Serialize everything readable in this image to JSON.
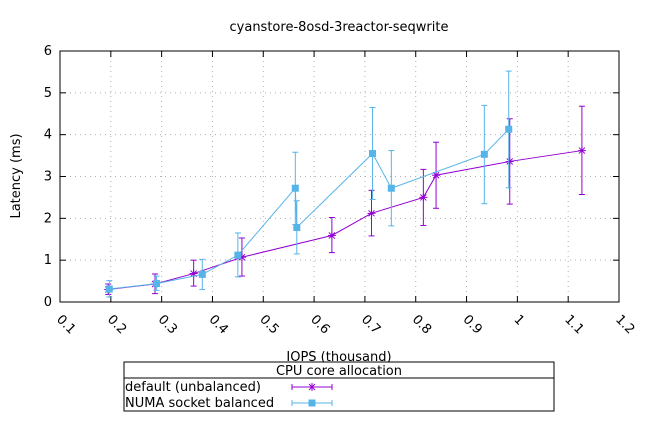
{
  "chart_data": {
    "type": "line",
    "title": "cyanstore-8osd-3reactor-seqwrite",
    "xlabel": "IOPS (thousand)",
    "ylabel": "Latency (ms)",
    "xlim": [
      0.1,
      1.2
    ],
    "ylim": [
      0,
      6
    ],
    "x_ticks": [
      "0.1",
      "0.2",
      "0.3",
      "0.4",
      "0.5",
      "0.6",
      "0.7",
      "0.8",
      "0.9",
      "1",
      "1.1",
      "1.2"
    ],
    "y_ticks": [
      "0",
      "1",
      "2",
      "3",
      "4",
      "5",
      "6"
    ],
    "grid": true,
    "legend": {
      "title": "CPU core allocation",
      "placement": "below"
    },
    "series": [
      {
        "name": "default (unbalanced)",
        "color": "#9400d3",
        "marker": "star",
        "points": [
          {
            "x": 0.195,
            "y": 0.3,
            "err_low": 0.18,
            "err_high": 0.43
          },
          {
            "x": 0.287,
            "y": 0.43,
            "err_low": 0.2,
            "err_high": 0.67
          },
          {
            "x": 0.363,
            "y": 0.68,
            "err_low": 0.38,
            "err_high": 1.0
          },
          {
            "x": 0.458,
            "y": 1.07,
            "err_low": 0.62,
            "err_high": 1.53
          },
          {
            "x": 0.635,
            "y": 1.59,
            "err_low": 1.18,
            "err_high": 2.02
          },
          {
            "x": 0.713,
            "y": 2.12,
            "err_low": 1.58,
            "err_high": 2.67
          },
          {
            "x": 0.815,
            "y": 2.5,
            "err_low": 1.83,
            "err_high": 3.17
          },
          {
            "x": 0.84,
            "y": 3.03,
            "err_low": 2.24,
            "err_high": 3.82
          },
          {
            "x": 0.985,
            "y": 3.36,
            "err_low": 2.34,
            "err_high": 4.38
          },
          {
            "x": 1.127,
            "y": 3.62,
            "err_low": 2.57,
            "err_high": 4.68
          }
        ]
      },
      {
        "name": "NUMA socket balanced",
        "color": "#56b4e9",
        "marker": "square",
        "points": [
          {
            "x": 0.197,
            "y": 0.31,
            "err_low": 0.12,
            "err_high": 0.51
          },
          {
            "x": 0.29,
            "y": 0.44,
            "err_low": 0.28,
            "err_high": 0.62
          },
          {
            "x": 0.38,
            "y": 0.66,
            "err_low": 0.3,
            "err_high": 1.02
          },
          {
            "x": 0.45,
            "y": 1.12,
            "err_low": 0.6,
            "err_high": 1.65
          },
          {
            "x": 0.563,
            "y": 2.72,
            "err_low": 1.85,
            "err_high": 3.58
          },
          {
            "x": 0.566,
            "y": 1.78,
            "err_low": 1.15,
            "err_high": 2.42
          },
          {
            "x": 0.715,
            "y": 3.55,
            "err_low": 2.45,
            "err_high": 4.65
          },
          {
            "x": 0.752,
            "y": 2.72,
            "err_low": 1.82,
            "err_high": 3.62
          },
          {
            "x": 0.935,
            "y": 3.53,
            "err_low": 2.35,
            "err_high": 4.7
          },
          {
            "x": 0.983,
            "y": 4.13,
            "err_low": 2.73,
            "err_high": 5.52
          }
        ]
      }
    ]
  }
}
